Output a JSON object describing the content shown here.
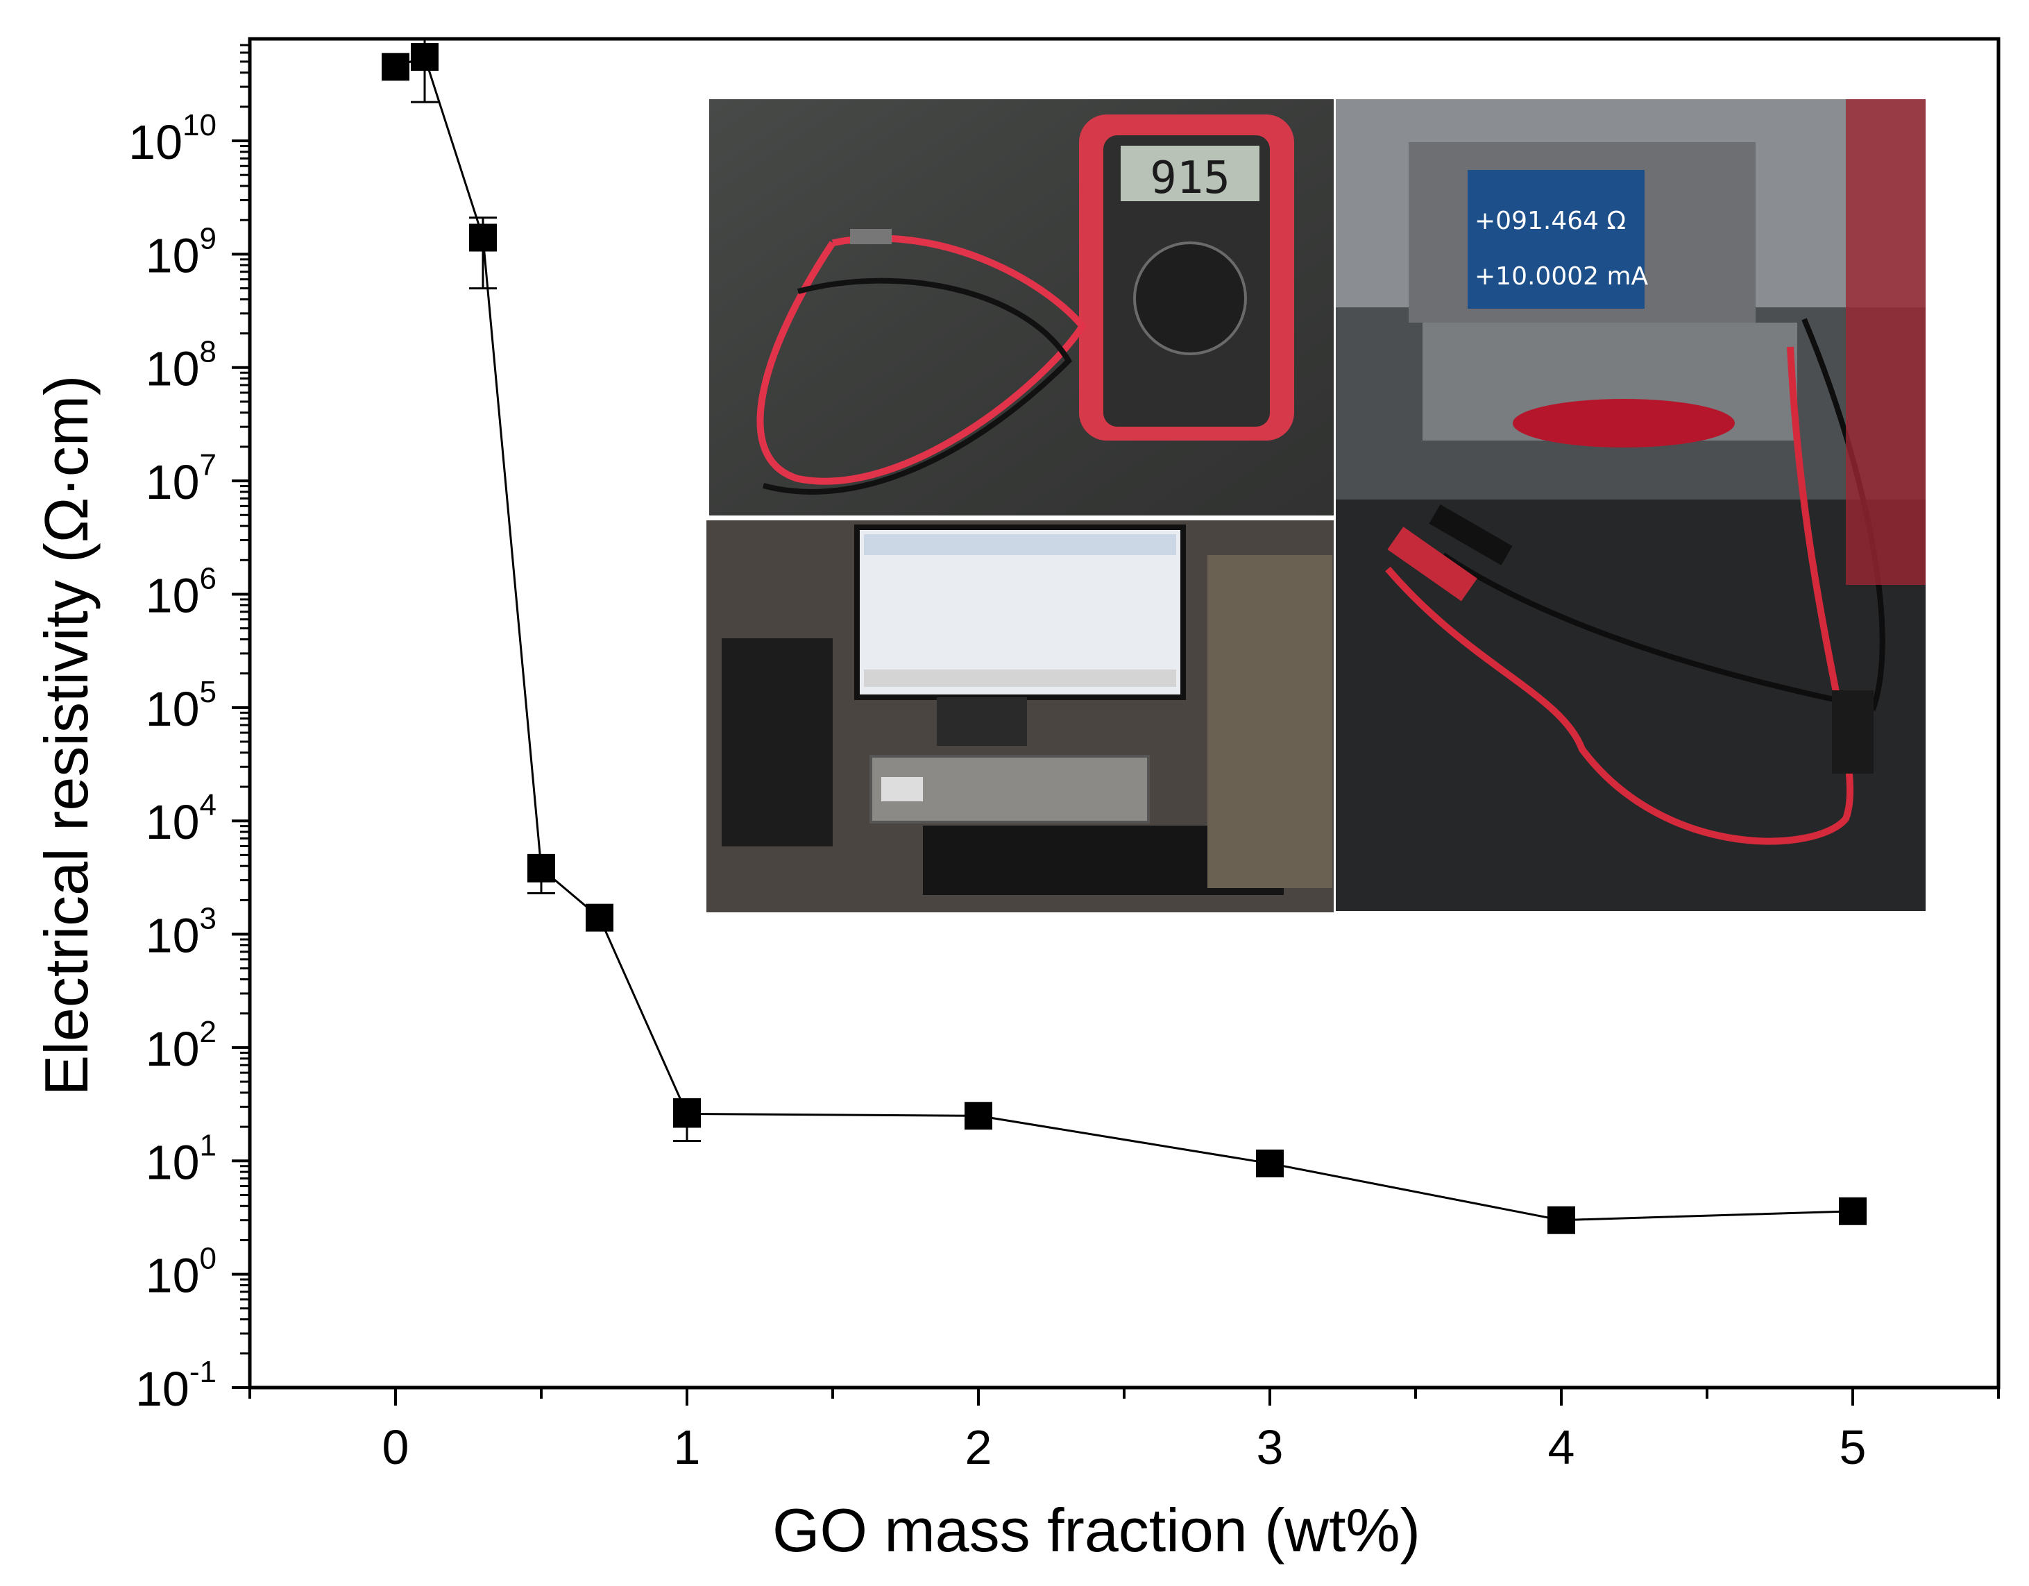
{
  "chart_data": {
    "type": "scatter",
    "title": "",
    "xlabel": "GO mass fraction (wt%)",
    "ylabel": "Electrical resistivity (Ω·cm)",
    "yscale": "log",
    "xlim": [
      -0.5,
      5.5
    ],
    "ylim_exponents": [
      -1,
      10.9
    ],
    "x_ticks": [
      0,
      1,
      2,
      3,
      4,
      5
    ],
    "x_tick_labels": [
      "0",
      "1",
      "2",
      "3",
      "4",
      "5"
    ],
    "y_tick_exponents": [
      -1,
      0,
      1,
      2,
      3,
      4,
      5,
      6,
      7,
      8,
      9,
      10
    ],
    "y_tick_base": "10",
    "y_tick_exp_labels": [
      "-1",
      "0",
      "1",
      "2",
      "3",
      "4",
      "5",
      "6",
      "7",
      "8",
      "9",
      "10"
    ],
    "grid": false,
    "legend": "none",
    "marker": "square",
    "connected": true,
    "series": [
      {
        "x": [
          0,
          0.1,
          0.3,
          0.5,
          0.7,
          1,
          2,
          3,
          4,
          5
        ],
        "y": [
          45000000000,
          55000000000,
          1400000000,
          3800,
          1400,
          26,
          25,
          9.5,
          3.0,
          3.6
        ],
        "y_err_low": [
          45000000000,
          22000000000,
          500000000,
          2300,
          1400,
          15,
          25,
          9.5,
          3.0,
          3.6
        ],
        "y_err_high": [
          45000000000,
          80000000000,
          2100000000,
          5000,
          1400,
          35,
          25,
          9.5,
          3.0,
          3.6
        ]
      }
    ]
  },
  "insets": [
    {
      "name": "multimeter-photo",
      "display_reading": "915"
    },
    {
      "name": "computer-setup-photo"
    },
    {
      "name": "keithley-source-meter-photo",
      "display_line_1": "+091.464 Ω",
      "display_line_2": "+10.0002 mA"
    }
  ],
  "colors": {
    "axis": "#000000",
    "marker": "#000000",
    "line": "#000000",
    "background": "#ffffff"
  }
}
